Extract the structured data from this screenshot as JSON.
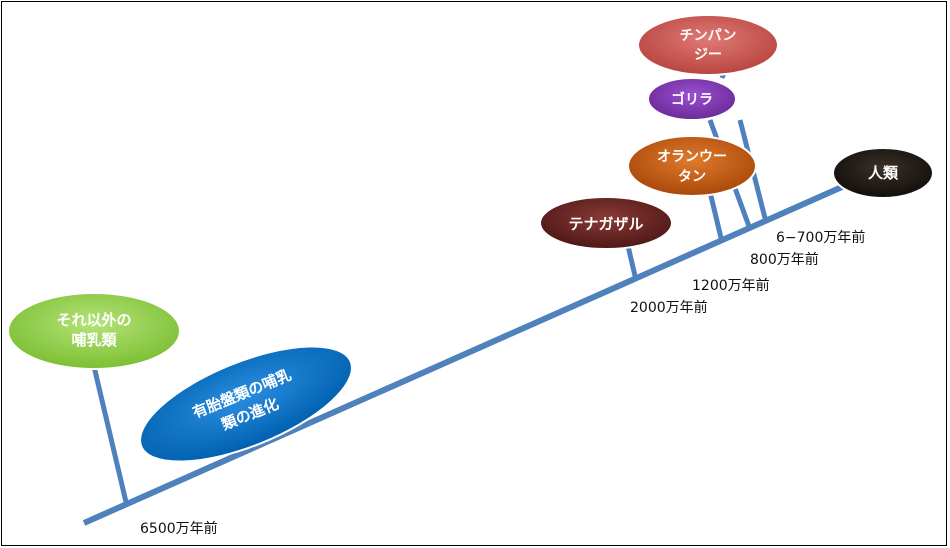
{
  "nodes": {
    "other_mammals": {
      "line1": "それ以外の",
      "line2": "哺乳類"
    },
    "placental": {
      "line1": "有胎盤類の哺乳",
      "line2": "類の進化"
    },
    "gibbon": {
      "label": "テナガザル"
    },
    "orangutan": {
      "line1": "オランウー",
      "line2": "タン"
    },
    "gorilla": {
      "label": "ゴリラ"
    },
    "chimpanzee": {
      "line1": "チンパン",
      "line2": "ジー"
    },
    "human": {
      "label": "人類"
    }
  },
  "times": {
    "t65m": "6500万年前",
    "t20m": "2000万年前",
    "t12m": "1200万年前",
    "t8m": "800万年前",
    "t6_7m": "6−700万年前"
  },
  "colors": {
    "line": "#4f81bd",
    "other_mammals": "#92d050",
    "placental": "#0070c0",
    "gibbon": "#632523",
    "orangutan": "#c55a11",
    "gorilla": "#7030a0",
    "chimpanzee": "#c0504d",
    "human": "#1a1510"
  }
}
